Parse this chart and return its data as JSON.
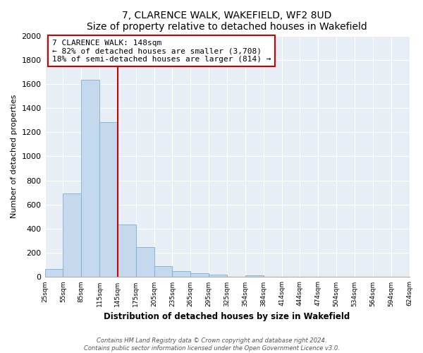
{
  "title": "7, CLARENCE WALK, WAKEFIELD, WF2 8UD",
  "subtitle": "Size of property relative to detached houses in Wakefield",
  "xlabel": "Distribution of detached houses by size in Wakefield",
  "ylabel": "Number of detached properties",
  "bar_values": [
    65,
    695,
    1635,
    1285,
    435,
    250,
    90,
    52,
    30,
    20,
    0,
    12,
    0,
    0,
    0,
    0,
    0,
    0,
    0,
    0
  ],
  "bar_labels": [
    "25sqm",
    "55sqm",
    "85sqm",
    "115sqm",
    "145sqm",
    "175sqm",
    "205sqm",
    "235sqm",
    "265sqm",
    "295sqm",
    "325sqm",
    "354sqm",
    "384sqm",
    "414sqm",
    "444sqm",
    "474sqm",
    "504sqm",
    "534sqm",
    "564sqm",
    "594sqm",
    "624sqm"
  ],
  "bar_color": "#c5d9ee",
  "bar_edge_color": "#7bafd4",
  "property_line_color": "#cc0000",
  "annotation_line1": "7 CLARENCE WALK: 148sqm",
  "annotation_line2": "← 82% of detached houses are smaller (3,708)",
  "annotation_line3": "18% of semi-detached houses are larger (814) →",
  "annotation_box_color": "#ffffff",
  "annotation_box_edge_color": "#cc0000",
  "ylim": [
    0,
    2000
  ],
  "yticks": [
    0,
    200,
    400,
    600,
    800,
    1000,
    1200,
    1400,
    1600,
    1800,
    2000
  ],
  "footer_line1": "Contains HM Land Registry data © Crown copyright and database right 2024.",
  "footer_line2": "Contains public sector information licensed under the Open Government Licence v3.0.",
  "bg_color": "#ffffff",
  "plot_bg_color": "#e8eef5"
}
